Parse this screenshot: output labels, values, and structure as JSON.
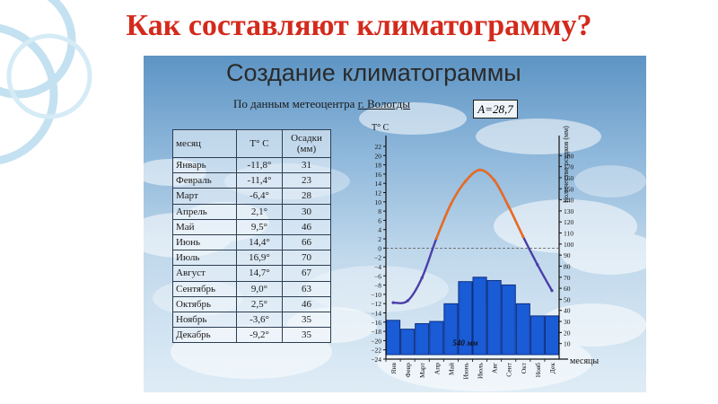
{
  "slide": {
    "title": "Как составляют климатограмму?"
  },
  "panel": {
    "title": "Создание климатограммы",
    "source_prefix": "По данным метеоцентра ",
    "source_city": "г. Вологды",
    "amplitude": "A=28,7"
  },
  "table": {
    "headers": [
      "месяц",
      "Т° С",
      "Осадки (мм)"
    ],
    "rows": [
      [
        "Январь",
        "-11,8°",
        "31"
      ],
      [
        "Февраль",
        "-11,4°",
        "23"
      ],
      [
        "Март",
        "-6,4°",
        "28"
      ],
      [
        "Апрель",
        "2,1°",
        "30"
      ],
      [
        "Май",
        "9,5°",
        "46"
      ],
      [
        "Июнь",
        "14,4°",
        "66"
      ],
      [
        "Июль",
        "16,9°",
        "70"
      ],
      [
        "Август",
        "14,7°",
        "67"
      ],
      [
        "Сентябрь",
        "9,0°",
        "63"
      ],
      [
        "Октябрь",
        "2,5°",
        "46"
      ],
      [
        "Ноябрь",
        "-3,6°",
        "35"
      ],
      [
        "Декабрь",
        "-9,2°",
        "35"
      ]
    ]
  },
  "colors": {
    "title_red": "#d42a1c",
    "bars": "#1a5bd6",
    "line_warm": "#ef6a1a",
    "line_cold": "#4a3fa8"
  },
  "chart_data": {
    "type": "bar",
    "categories": [
      "Янв",
      "Февр",
      "Март",
      "Апр",
      "Май",
      "Июнь",
      "Июль",
      "Авг",
      "Сент",
      "Окт",
      "Нояб",
      "Дек"
    ],
    "series": [
      {
        "values": [
          31,
          23,
          28,
          30,
          46,
          66,
          70,
          67,
          63,
          46,
          35,
          35
        ]
      },
      {
        "values": [
          -11.8,
          -11.4,
          -6.4,
          2.1,
          9.5,
          14.4,
          16.9,
          14.7,
          9.0,
          2.5,
          -3.6,
          -9.2
        ]
      }
    ],
    "y_left_label": "Т° С",
    "y_left_ticks": [
      22,
      20,
      18,
      16,
      14,
      12,
      10,
      8,
      6,
      4,
      2,
      0,
      -2,
      -4,
      -6,
      -8,
      -10,
      -12,
      -14,
      -16,
      -18,
      -20,
      -22,
      -24
    ],
    "y_left_range": [
      -24,
      22
    ],
    "y_right_label": "Количество осадков (мм)",
    "y_right_ticks": [
      180,
      170,
      160,
      150,
      140,
      130,
      120,
      110,
      100,
      90,
      80,
      70,
      60,
      50,
      40,
      30,
      20,
      10
    ],
    "y_right_range": [
      0,
      180
    ],
    "x_label": "месяцы",
    "annotation": "540 мм",
    "zero_line": "dashed"
  }
}
